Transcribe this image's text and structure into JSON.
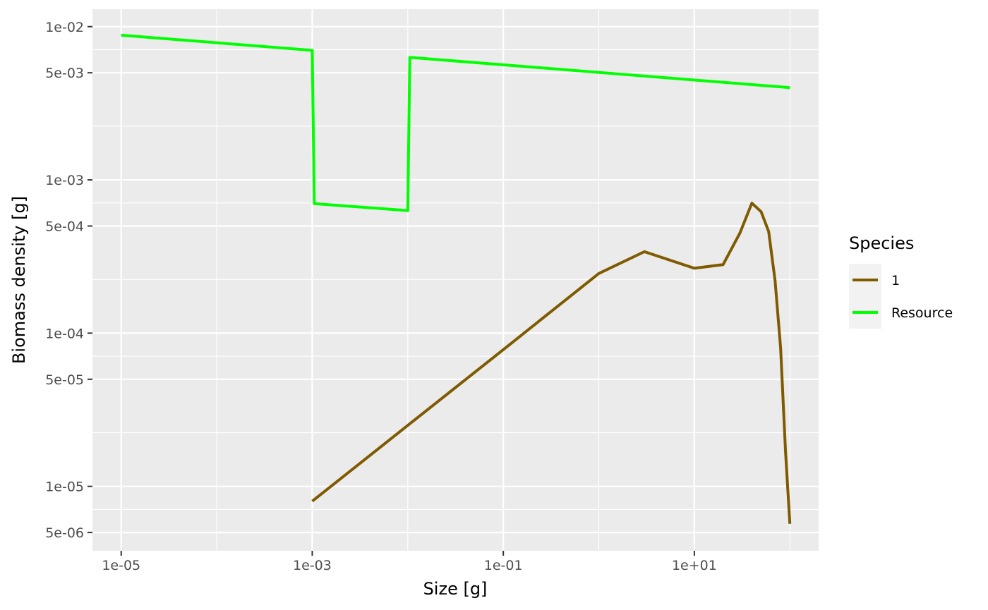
{
  "chart_data": {
    "type": "line",
    "xlabel": "Size [g]",
    "ylabel": "Biomass density [g]",
    "x_scale": "log10",
    "y_scale": "log10",
    "xlim": [
      5e-06,
      200.0
    ],
    "ylim": [
      3.8e-06,
      0.013
    ],
    "x_ticks": [
      {
        "value": 1e-05,
        "label": "1e-05"
      },
      {
        "value": 0.001,
        "label": "1e-03"
      },
      {
        "value": 0.1,
        "label": "1e-01"
      },
      {
        "value": 10.0,
        "label": "1e+01"
      }
    ],
    "x_minor_ticks": [
      0.0001,
      0.01,
      1,
      100.0
    ],
    "y_ticks": [
      {
        "value": 0.01,
        "label": "1e-02"
      },
      {
        "value": 0.005,
        "label": "5e-03"
      },
      {
        "value": 0.001,
        "label": "1e-03"
      },
      {
        "value": 0.0005,
        "label": "5e-04"
      },
      {
        "value": 0.0001,
        "label": "1e-04"
      },
      {
        "value": 5e-05,
        "label": "5e-05"
      },
      {
        "value": 1e-05,
        "label": "1e-05"
      },
      {
        "value": 5e-06,
        "label": "5e-06"
      }
    ],
    "y_minor_ticks": [
      0.00707,
      0.00224,
      0.000707,
      0.000224,
      7.07e-05,
      2.24e-05,
      7.07e-06
    ],
    "grid": true,
    "legend": {
      "title": "Species",
      "position": "right"
    },
    "series": [
      {
        "name": "1",
        "color": "#7f5a00",
        "points": [
          [
            0.001,
            8e-06
          ],
          [
            0.01,
            2.5e-05
          ],
          [
            0.1,
            7.8e-05
          ],
          [
            1,
            0.000245
          ],
          [
            3,
            0.00034
          ],
          [
            10,
            0.000265
          ],
          [
            20,
            0.00028
          ],
          [
            30,
            0.00045
          ],
          [
            40,
            0.000705
          ],
          [
            50,
            0.00062
          ],
          [
            60,
            0.00046
          ],
          [
            70,
            0.00022
          ],
          [
            80,
            8e-05
          ],
          [
            90,
            1.7e-05
          ],
          [
            100,
            5.7e-06
          ]
        ]
      },
      {
        "name": "Resource",
        "color": "#00ff00",
        "points": [
          [
            1e-05,
            0.0088
          ],
          [
            0.001,
            0.007
          ],
          [
            0.00105,
            0.0007
          ],
          [
            0.01,
            0.00063
          ],
          [
            0.0105,
            0.0063
          ],
          [
            100,
            0.004
          ]
        ]
      }
    ]
  }
}
